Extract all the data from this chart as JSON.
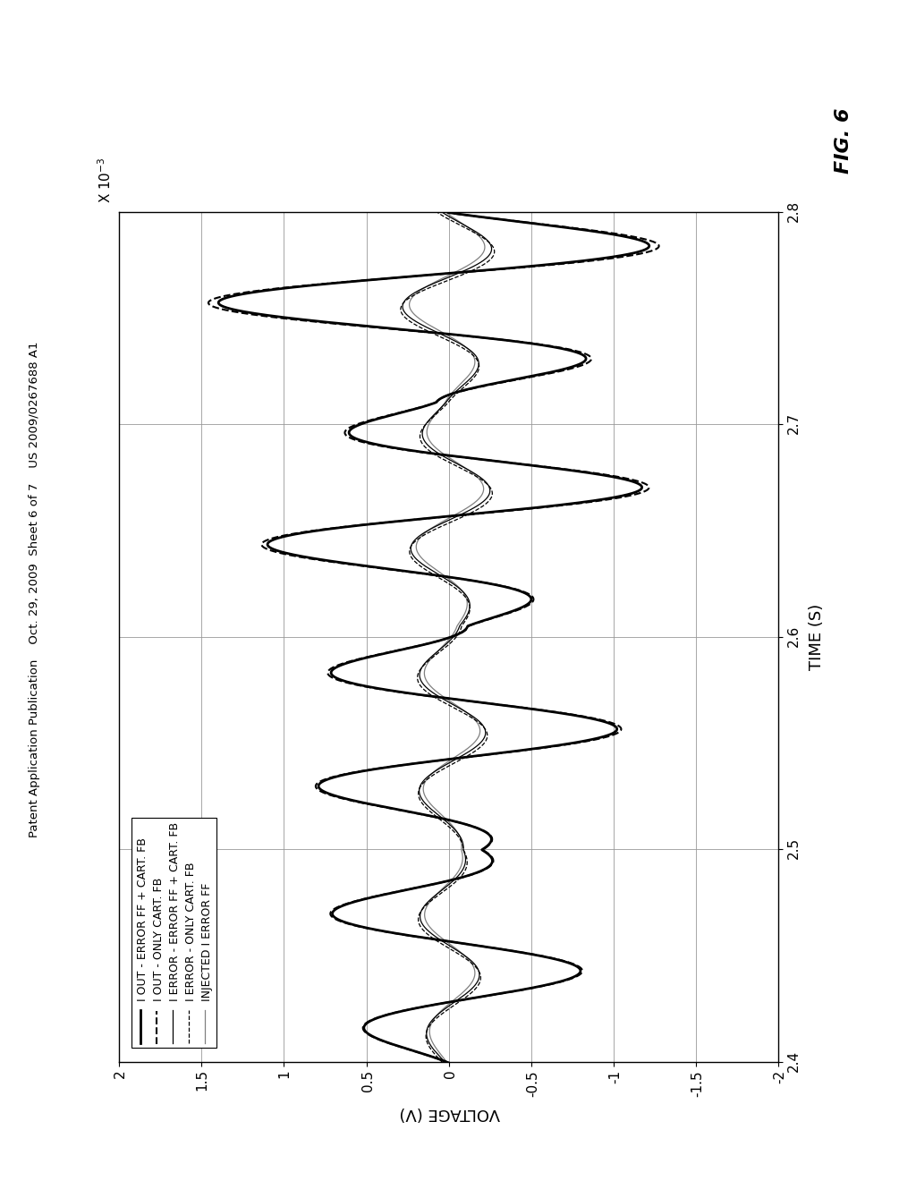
{
  "xlim": [
    0.0024,
    0.0028
  ],
  "ylim": [
    -2.0,
    2.0
  ],
  "xtick_vals": [
    2.4,
    2.5,
    2.6,
    2.7,
    2.8
  ],
  "ytick_vals": [
    2,
    1.5,
    1,
    0.5,
    0,
    -0.5,
    -1,
    -1.5,
    -2
  ],
  "xlabel": "TIME (S)",
  "ylabel": "VOLTAGE (V)",
  "fig_label": "FIG. 6",
  "x_exp_label": "X 10-3",
  "background_color": "#ffffff",
  "legend_labels": [
    "I OUT - ERROR FF + CART. FB",
    "I OUT - ONLY CART. FB",
    "I ERROR - ERROR FF + CART. FB",
    "I ERROR - ONLY CART. FB",
    "INJECTED I ERROR FF"
  ],
  "grid_color": "#999999",
  "header_text": "Patent Application Publication    Oct. 29, 2009  Sheet 6 of 7    US 2009/0267688 A1"
}
